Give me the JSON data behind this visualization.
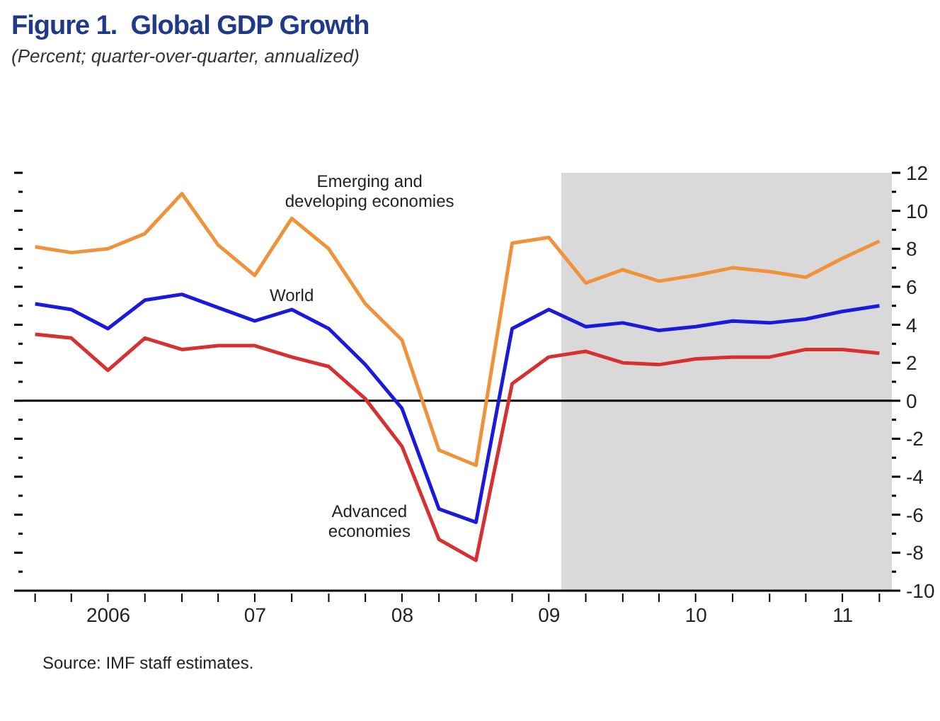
{
  "chart_data": {
    "type": "line",
    "title": "Figure 1.  Global GDP Growth",
    "subtitle": "(Percent; quarter-over-quarter, annualized)",
    "annotations": [
      "Source: IMF staff estimates."
    ],
    "x": [
      "2006-01",
      "2006-04",
      "2006-07",
      "2006-10",
      "2007-01",
      "2007-04",
      "2007-07",
      "2007-10",
      "2008-01",
      "2008-04",
      "2008-07",
      "2008-10",
      "2009-01",
      "2009-04",
      "2009-07",
      "2009-10",
      "2010-01",
      "2010-04",
      "2010-07",
      "2010-10",
      "2011-01",
      "2011-04",
      "2011-07",
      "2011-10"
    ],
    "series": [
      {
        "name": "Emerging and developing economies",
        "color": "#f0923a",
        "values": [
          8.1,
          7.8,
          8.0,
          8.8,
          10.9,
          8.2,
          6.6,
          9.6,
          8.0,
          5.1,
          3.2,
          -2.6,
          -3.4,
          8.3,
          8.6,
          6.2,
          6.9,
          6.3,
          6.6,
          7.0,
          6.8,
          6.5,
          7.5,
          8.4
        ]
      },
      {
        "name": "World",
        "color": "#1a1adc",
        "values": [
          5.1,
          4.8,
          3.8,
          5.3,
          5.6,
          4.9,
          4.2,
          4.8,
          3.8,
          1.9,
          -0.4,
          -5.7,
          -6.4,
          3.8,
          4.8,
          3.9,
          4.1,
          3.7,
          3.9,
          4.2,
          4.1,
          4.3,
          4.7,
          5.0
        ]
      },
      {
        "name": "Advanced economies",
        "color": "#d83030",
        "values": [
          3.5,
          3.3,
          1.6,
          3.3,
          2.7,
          2.9,
          2.9,
          2.3,
          1.8,
          0.1,
          -2.4,
          -7.3,
          -8.4,
          0.9,
          2.3,
          2.6,
          2.0,
          1.9,
          2.2,
          2.3,
          2.3,
          2.7,
          2.7,
          2.5
        ]
      }
    ],
    "xlim": [
      "2005-12",
      "2011-11"
    ],
    "xticks": [
      {
        "value": "2006-01",
        "label": null
      },
      {
        "value": "2006-04",
        "label": null
      },
      {
        "value": "2006-07",
        "label": null
      },
      {
        "value": "2006-10",
        "label": null
      },
      {
        "value": "2007-01",
        "label": null
      },
      {
        "value": "2007-04",
        "label": null
      },
      {
        "value": "2007-07",
        "label": null
      },
      {
        "value": "2007-10",
        "label": null
      },
      {
        "value": "2008-01",
        "label": null
      },
      {
        "value": "2008-04",
        "label": null
      },
      {
        "value": "2008-07",
        "label": null
      },
      {
        "value": "2008-10",
        "label": null
      },
      {
        "value": "2009-01",
        "label": null
      },
      {
        "value": "2009-04",
        "label": null
      },
      {
        "value": "2009-07",
        "label": null
      },
      {
        "value": "2009-10",
        "label": null
      },
      {
        "value": "2010-01",
        "label": null
      },
      {
        "value": "2010-04",
        "label": null
      },
      {
        "value": "2010-07",
        "label": null
      },
      {
        "value": "2010-10",
        "label": null
      },
      {
        "value": "2011-01",
        "label": null
      },
      {
        "value": "2011-04",
        "label": null
      },
      {
        "value": "2011-07",
        "label": null
      },
      {
        "value": "2011-10",
        "label": null
      },
      {
        "value": "2006-07-02",
        "label": "2006"
      },
      {
        "value": "2007-07-02",
        "label": "07"
      },
      {
        "value": "2008-07-02",
        "label": "08"
      },
      {
        "value": "2009-07-02",
        "label": "09"
      },
      {
        "value": "2010-07-02",
        "label": "10"
      },
      {
        "value": "2011-07-02",
        "label": "11"
      }
    ],
    "ylim": [
      -10,
      12
    ],
    "yticks": [
      -10,
      {
        "value": -9,
        "label": null
      },
      -8,
      {
        "value": -7,
        "label": null
      },
      -6,
      {
        "value": -5,
        "label": null
      },
      -4,
      {
        "value": -3,
        "label": null
      },
      -2,
      {
        "value": -1,
        "label": null
      },
      0,
      {
        "value": 1,
        "label": null
      },
      2,
      {
        "value": 3,
        "label": null
      },
      4,
      {
        "value": 5,
        "label": null
      },
      6,
      {
        "value": 7,
        "label": null
      },
      8,
      {
        "value": 9,
        "label": null
      },
      10,
      {
        "value": 11,
        "label": null
      },
      12
    ],
    "ref_lines": [
      {
        "axis": "y",
        "value": 0,
        "color": "#000000"
      }
    ],
    "bands": [
      {
        "axis": "x",
        "from": "2009-08",
        "to": "2011-11",
        "color": "#d9d9d9"
      }
    ],
    "marker": "none",
    "line_style": "solid"
  }
}
